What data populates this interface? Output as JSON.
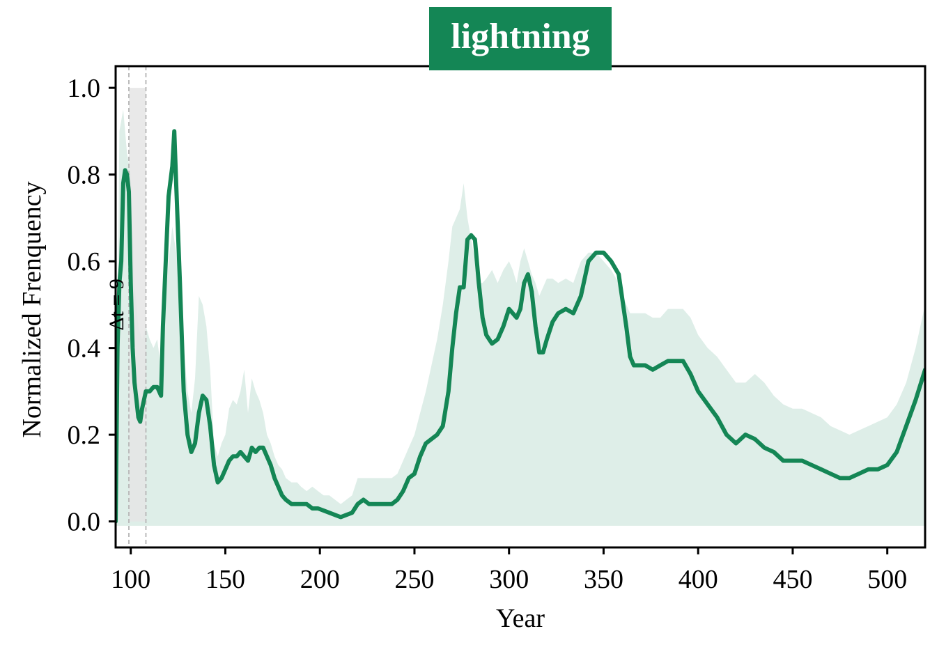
{
  "chart_data": {
    "type": "line",
    "title": "lightning",
    "xlabel": "Year",
    "ylabel": "Normalized Frenquency",
    "xlim": [
      92,
      520
    ],
    "ylim": [
      -0.06,
      1.05
    ],
    "xticks": [
      100,
      150,
      200,
      250,
      300,
      350,
      400,
      450,
      500
    ],
    "yticks": [
      0.0,
      0.2,
      0.4,
      0.6,
      0.8,
      1.0
    ],
    "xtick_labels": [
      "100",
      "150",
      "200",
      "250",
      "300",
      "350",
      "400",
      "450",
      "500"
    ],
    "ytick_labels": [
      "0.0",
      "0.2",
      "0.4",
      "0.6",
      "0.8",
      "1.0"
    ],
    "annotation": "Δt = 9",
    "highlight_window": {
      "x_start": 99,
      "x_end": 108,
      "y_top": 1.0
    },
    "colors": {
      "line": "#148655",
      "band": "#deeee8",
      "window": "#e5e5e5",
      "title_bg": "#148655"
    },
    "series": [
      {
        "x": [
          92,
          93,
          94,
          95,
          96,
          97,
          98,
          99,
          100,
          101,
          102,
          103,
          104,
          105,
          106,
          107,
          108,
          110,
          112,
          114,
          116,
          117,
          118,
          120,
          122,
          123,
          124,
          126,
          128,
          130,
          132,
          134,
          136,
          138,
          140,
          142,
          144,
          146,
          148,
          150,
          152,
          154,
          156,
          158,
          160,
          162,
          164,
          166,
          168,
          170,
          172,
          174,
          176,
          178,
          180,
          182,
          185,
          188,
          190,
          193,
          196,
          199,
          202,
          205,
          208,
          211,
          214,
          217,
          220,
          223,
          226,
          230,
          234,
          238,
          241,
          244,
          247,
          250,
          253,
          256,
          259,
          262,
          265,
          268,
          270,
          272,
          274,
          276,
          278,
          280,
          282,
          284,
          286,
          288,
          291,
          294,
          297,
          300,
          302,
          304,
          306,
          308,
          310,
          312,
          314,
          316,
          318,
          320,
          323,
          326,
          330,
          334,
          338,
          342,
          346,
          350,
          354,
          358,
          362,
          364,
          366,
          368,
          372,
          376,
          380,
          384,
          388,
          392,
          396,
          400,
          405,
          410,
          415,
          420,
          425,
          430,
          435,
          440,
          445,
          450,
          455,
          460,
          465,
          470,
          475,
          480,
          485,
          490,
          495,
          500,
          505,
          510,
          515,
          520
        ],
        "y": [
          0.0,
          0.4,
          0.55,
          0.6,
          0.78,
          0.81,
          0.8,
          0.76,
          0.55,
          0.4,
          0.32,
          0.28,
          0.24,
          0.23,
          0.26,
          0.28,
          0.3,
          0.3,
          0.31,
          0.31,
          0.29,
          0.45,
          0.55,
          0.75,
          0.82,
          0.9,
          0.78,
          0.55,
          0.3,
          0.2,
          0.16,
          0.18,
          0.25,
          0.29,
          0.28,
          0.22,
          0.13,
          0.09,
          0.1,
          0.12,
          0.14,
          0.15,
          0.15,
          0.16,
          0.15,
          0.14,
          0.17,
          0.16,
          0.17,
          0.17,
          0.15,
          0.13,
          0.1,
          0.08,
          0.06,
          0.05,
          0.04,
          0.04,
          0.04,
          0.04,
          0.03,
          0.03,
          0.025,
          0.02,
          0.015,
          0.01,
          0.015,
          0.02,
          0.04,
          0.05,
          0.04,
          0.04,
          0.04,
          0.04,
          0.05,
          0.07,
          0.1,
          0.11,
          0.15,
          0.18,
          0.19,
          0.2,
          0.22,
          0.3,
          0.4,
          0.48,
          0.54,
          0.54,
          0.65,
          0.66,
          0.65,
          0.55,
          0.47,
          0.43,
          0.41,
          0.42,
          0.45,
          0.49,
          0.48,
          0.47,
          0.49,
          0.55,
          0.57,
          0.53,
          0.45,
          0.39,
          0.39,
          0.42,
          0.46,
          0.48,
          0.49,
          0.48,
          0.52,
          0.6,
          0.62,
          0.62,
          0.6,
          0.57,
          0.45,
          0.38,
          0.36,
          0.36,
          0.36,
          0.35,
          0.36,
          0.37,
          0.37,
          0.37,
          0.34,
          0.3,
          0.27,
          0.24,
          0.2,
          0.18,
          0.2,
          0.19,
          0.17,
          0.16,
          0.14,
          0.14,
          0.14,
          0.13,
          0.12,
          0.11,
          0.1,
          0.1,
          0.11,
          0.12,
          0.12,
          0.13,
          0.16,
          0.22,
          0.28,
          0.35
        ]
      }
    ],
    "band": {
      "x": [
        92,
        94,
        96,
        98,
        100,
        102,
        104,
        106,
        108,
        110,
        112,
        114,
        116,
        118,
        120,
        122,
        124,
        126,
        128,
        130,
        132,
        134,
        136,
        138,
        140,
        142,
        144,
        146,
        148,
        150,
        152,
        154,
        156,
        158,
        160,
        162,
        164,
        166,
        168,
        170,
        172,
        174,
        176,
        178,
        180,
        182,
        185,
        188,
        190,
        193,
        196,
        199,
        202,
        205,
        208,
        211,
        214,
        217,
        220,
        223,
        226,
        230,
        234,
        238,
        241,
        244,
        247,
        250,
        253,
        256,
        259,
        262,
        265,
        268,
        270,
        272,
        274,
        276,
        278,
        280,
        282,
        284,
        286,
        288,
        291,
        294,
        297,
        300,
        302,
        304,
        306,
        308,
        310,
        312,
        314,
        316,
        318,
        320,
        323,
        326,
        330,
        334,
        338,
        342,
        346,
        350,
        354,
        358,
        362,
        364,
        366,
        368,
        372,
        376,
        380,
        384,
        388,
        392,
        396,
        400,
        405,
        410,
        415,
        420,
        425,
        430,
        435,
        440,
        445,
        450,
        455,
        460,
        465,
        470,
        475,
        480,
        485,
        490,
        495,
        500,
        505,
        510,
        515,
        520
      ],
      "upper": [
        0.02,
        0.9,
        0.95,
        0.85,
        0.8,
        0.55,
        0.45,
        0.42,
        0.45,
        0.42,
        0.4,
        0.42,
        0.35,
        0.5,
        0.6,
        0.68,
        0.62,
        0.55,
        0.4,
        0.3,
        0.25,
        0.33,
        0.52,
        0.5,
        0.45,
        0.35,
        0.18,
        0.15,
        0.18,
        0.2,
        0.26,
        0.28,
        0.27,
        0.3,
        0.35,
        0.25,
        0.33,
        0.3,
        0.28,
        0.25,
        0.2,
        0.18,
        0.15,
        0.13,
        0.12,
        0.1,
        0.09,
        0.09,
        0.08,
        0.07,
        0.08,
        0.07,
        0.06,
        0.06,
        0.05,
        0.04,
        0.05,
        0.06,
        0.1,
        0.1,
        0.1,
        0.1,
        0.1,
        0.1,
        0.11,
        0.14,
        0.17,
        0.2,
        0.25,
        0.3,
        0.36,
        0.42,
        0.5,
        0.6,
        0.68,
        0.7,
        0.72,
        0.78,
        0.7,
        0.65,
        0.6,
        0.55,
        0.55,
        0.56,
        0.58,
        0.55,
        0.58,
        0.6,
        0.58,
        0.55,
        0.6,
        0.63,
        0.6,
        0.57,
        0.55,
        0.52,
        0.54,
        0.56,
        0.56,
        0.55,
        0.56,
        0.55,
        0.6,
        0.62,
        0.62,
        0.6,
        0.58,
        0.55,
        0.5,
        0.48,
        0.48,
        0.48,
        0.48,
        0.47,
        0.47,
        0.49,
        0.49,
        0.49,
        0.47,
        0.43,
        0.4,
        0.38,
        0.35,
        0.32,
        0.32,
        0.34,
        0.32,
        0.29,
        0.27,
        0.26,
        0.26,
        0.25,
        0.24,
        0.22,
        0.21,
        0.2,
        0.21,
        0.22,
        0.23,
        0.24,
        0.27,
        0.32,
        0.4,
        0.5
      ],
      "lower": -0.01
    }
  }
}
